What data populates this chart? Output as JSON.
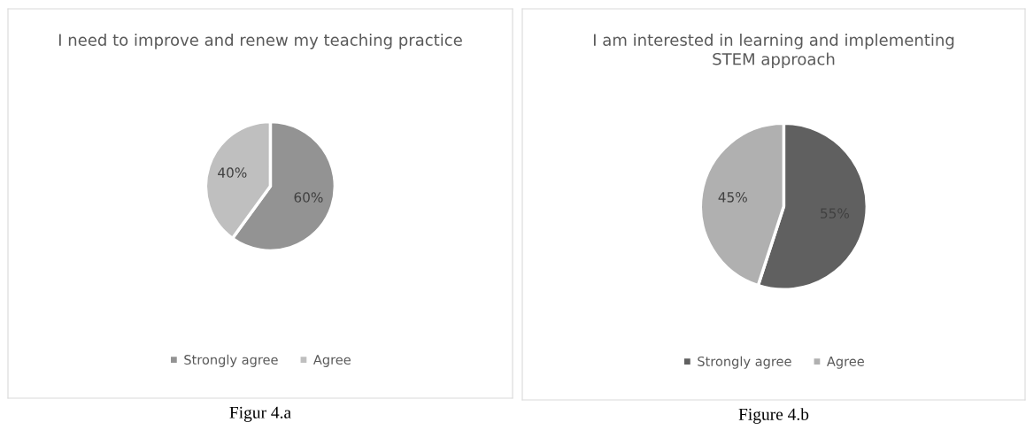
{
  "chart_data": [
    {
      "type": "pie",
      "title": "I need to improve and renew my teaching practice",
      "categories": [
        "Strongly agree",
        "Agree"
      ],
      "values": [
        60,
        40
      ],
      "colors": [
        "#939393",
        "#bfbfbf"
      ],
      "value_labels": [
        "60%",
        "40%"
      ],
      "legend": "bottom",
      "annotations": [
        "Figur 4.a"
      ]
    },
    {
      "type": "pie",
      "title": "I am interested in learning and implementing STEM approach",
      "categories": [
        "Strongly agree",
        "Agree"
      ],
      "values": [
        55,
        45
      ],
      "colors": [
        "#606060",
        "#b0b0b0"
      ],
      "value_labels": [
        "55%",
        "45%"
      ],
      "legend": "bottom",
      "annotations": [
        "Figure 4.b"
      ]
    }
  ]
}
